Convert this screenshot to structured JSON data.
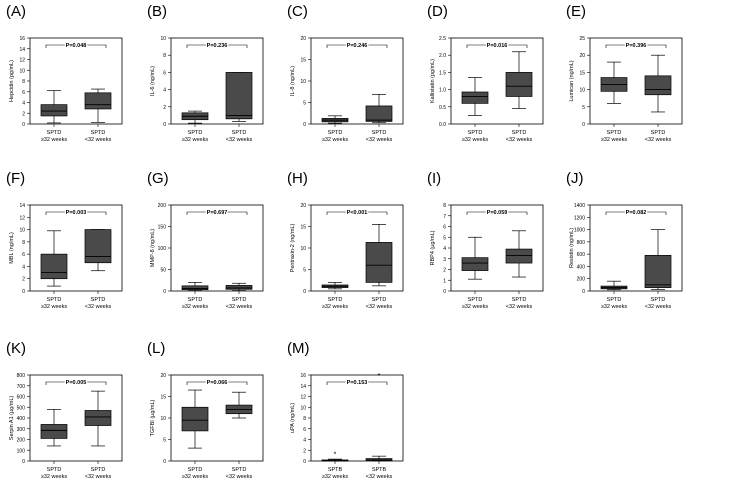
{
  "chart_data": [
    {
      "type": "box",
      "panel_label": "(A)",
      "ylabel": "Hepcidin (pg/mL)",
      "ylim": [
        0,
        16
      ],
      "yticks": [
        0,
        2,
        4,
        6,
        8,
        10,
        12,
        14,
        16
      ],
      "p_value": "P=0.048",
      "categories": [
        {
          "line1": "SPTD",
          "line2": "≥32 weeks",
          "box": {
            "min": 0.2,
            "q1": 1.5,
            "median": 2.4,
            "q3": 3.6,
            "max": 6.2
          }
        },
        {
          "line1": "SPTD",
          "line2": "<32 weeks",
          "box": {
            "min": 0.3,
            "q1": 2.8,
            "median": 3.6,
            "q3": 5.8,
            "max": 6.5
          }
        }
      ]
    },
    {
      "type": "box",
      "panel_label": "(B)",
      "ylabel": "IL-6 (ng/mL)",
      "ylim": [
        0,
        10
      ],
      "yticks": [
        0,
        2,
        4,
        6,
        8,
        10
      ],
      "p_value": "P=0.236",
      "categories": [
        {
          "line1": "SPTD",
          "line2": "≥32 weeks",
          "box": {
            "min": 0.1,
            "q1": 0.5,
            "median": 0.9,
            "q3": 1.3,
            "max": 1.5
          }
        },
        {
          "line1": "SPTD",
          "line2": "<32 weeks",
          "box": {
            "min": 0.3,
            "q1": 0.6,
            "median": 1.0,
            "q3": 6.0,
            "max": 6.0
          }
        }
      ]
    },
    {
      "type": "box",
      "panel_label": "(C)",
      "ylabel": "IL-8 (ng/mL)",
      "ylim": [
        0,
        20
      ],
      "yticks": [
        0,
        5,
        10,
        15,
        20
      ],
      "p_value": "P=0.246",
      "categories": [
        {
          "line1": "SPTD",
          "line2": "≥32 weeks",
          "box": {
            "min": 0.2,
            "q1": 0.5,
            "median": 0.9,
            "q3": 1.3,
            "max": 1.9
          }
        },
        {
          "line1": "SPTD",
          "line2": "<32 weeks",
          "box": {
            "min": 0.3,
            "q1": 0.6,
            "median": 0.9,
            "q3": 4.2,
            "max": 6.9
          }
        }
      ]
    },
    {
      "type": "box",
      "panel_label": "(D)",
      "ylabel": "Kallistatin (pg/mL)",
      "ylim": [
        0,
        2.5
      ],
      "yticks": [
        0.0,
        0.5,
        1.0,
        1.5,
        2.0,
        2.5
      ],
      "p_value": "P=0.016",
      "categories": [
        {
          "line1": "SPTD",
          "line2": "≥32 weeks",
          "box": {
            "min": 0.25,
            "q1": 0.6,
            "median": 0.8,
            "q3": 0.93,
            "max": 1.35
          }
        },
        {
          "line1": "SPTD",
          "line2": "<32 weeks",
          "box": {
            "min": 0.45,
            "q1": 0.8,
            "median": 1.1,
            "q3": 1.5,
            "max": 2.1
          }
        }
      ]
    },
    {
      "type": "box",
      "panel_label": "(E)",
      "ylabel": "Lumican (ng/mL)",
      "ylim": [
        0,
        25
      ],
      "yticks": [
        0,
        5,
        10,
        15,
        20,
        25
      ],
      "p_value": "P=0.396",
      "categories": [
        {
          "line1": "SPTD",
          "line2": "≥32 weeks",
          "box": {
            "min": 6,
            "q1": 9.5,
            "median": 11.5,
            "q3": 13.5,
            "max": 18
          }
        },
        {
          "line1": "SPTD",
          "line2": "<32 weeks",
          "box": {
            "min": 3.5,
            "q1": 8.5,
            "median": 10,
            "q3": 14,
            "max": 20
          }
        }
      ]
    },
    {
      "type": "box",
      "panel_label": "(F)",
      "ylabel": "MBL (ng/mL)",
      "ylim": [
        0,
        14
      ],
      "yticks": [
        0,
        2,
        4,
        6,
        8,
        10,
        12,
        14
      ],
      "p_value": "P=0.003",
      "categories": [
        {
          "line1": "SPTD",
          "line2": "≥32 weeks",
          "box": {
            "min": 0.8,
            "q1": 2,
            "median": 3,
            "q3": 6,
            "max": 9.8
          }
        },
        {
          "line1": "SPTD",
          "line2": "<32 weeks",
          "box": {
            "min": 3.3,
            "q1": 4.6,
            "median": 5.6,
            "q3": 10,
            "max": 10
          }
        }
      ]
    },
    {
      "type": "box",
      "panel_label": "(G)",
      "ylabel": "MMP-8 (ng/mL)",
      "ylim": [
        0,
        200
      ],
      "yticks": [
        0,
        50,
        100,
        150,
        200
      ],
      "p_value": "P=0.697",
      "categories": [
        {
          "line1": "SPTD",
          "line2": "≥32 weeks",
          "box": {
            "min": 1,
            "q1": 3,
            "median": 6,
            "q3": 12,
            "max": 20
          }
        },
        {
          "line1": "SPTD",
          "line2": "<32 weeks",
          "box": {
            "min": 1,
            "q1": 4,
            "median": 7,
            "q3": 13,
            "max": 18
          }
        }
      ]
    },
    {
      "type": "box",
      "panel_label": "(H)",
      "ylabel": "Pentraxin-2 (ng/mL)",
      "ylim": [
        0,
        20
      ],
      "yticks": [
        0,
        5,
        10,
        15,
        20
      ],
      "p_value": "P<0.001",
      "categories": [
        {
          "line1": "SPTD",
          "line2": "≥32 weeks",
          "box": {
            "min": 0.5,
            "q1": 0.8,
            "median": 1.1,
            "q3": 1.4,
            "max": 2.0
          }
        },
        {
          "line1": "SPTD",
          "line2": "<32 weeks",
          "box": {
            "min": 1.2,
            "q1": 2,
            "median": 6,
            "q3": 11.3,
            "max": 15.5
          }
        }
      ]
    },
    {
      "type": "box",
      "panel_label": "(I)",
      "ylabel": "RBP4 (µg/mL)",
      "ylim": [
        0,
        8
      ],
      "yticks": [
        0,
        1,
        2,
        3,
        4,
        5,
        6,
        7,
        8
      ],
      "p_value": "P=0.059",
      "categories": [
        {
          "line1": "SPTD",
          "line2": "≥32 weeks",
          "box": {
            "min": 1.1,
            "q1": 1.9,
            "median": 2.6,
            "q3": 3.1,
            "max": 5.0
          }
        },
        {
          "line1": "SPTD",
          "line2": "<32 weeks",
          "box": {
            "min": 1.3,
            "q1": 2.6,
            "median": 3.3,
            "q3": 3.9,
            "max": 5.6
          }
        }
      ]
    },
    {
      "type": "box",
      "panel_label": "(J)",
      "ylabel": "Resistin (ng/mL)",
      "ylim": [
        0,
        1400
      ],
      "yticks": [
        0,
        200,
        400,
        600,
        800,
        1000,
        1200,
        1400
      ],
      "p_value": "P=0.082",
      "categories": [
        {
          "line1": "SPTD",
          "line2": "≥32 weeks",
          "box": {
            "min": 20,
            "q1": 35,
            "median": 55,
            "q3": 80,
            "max": 160
          }
        },
        {
          "line1": "SPTD",
          "line2": "<32 weeks",
          "box": {
            "min": 25,
            "q1": 55,
            "median": 100,
            "q3": 580,
            "max": 1000
          }
        }
      ]
    },
    {
      "type": "box",
      "panel_label": "(K)",
      "ylabel": "Serpin A1 (µg/mL)",
      "ylim": [
        0,
        800
      ],
      "yticks": [
        0,
        100,
        200,
        300,
        400,
        500,
        600,
        700,
        800
      ],
      "p_value": "P=0.005",
      "categories": [
        {
          "line1": "SPTD",
          "line2": "≥32 weeks",
          "box": {
            "min": 140,
            "q1": 210,
            "median": 285,
            "q3": 340,
            "max": 480
          }
        },
        {
          "line1": "SPTD",
          "line2": "<32 weeks",
          "box": {
            "min": 140,
            "q1": 330,
            "median": 410,
            "q3": 470,
            "max": 650
          }
        }
      ]
    },
    {
      "type": "box",
      "panel_label": "(L)",
      "ylabel": "TGFBI (µg/mL)",
      "ylim": [
        0,
        20
      ],
      "yticks": [
        0,
        5,
        10,
        15,
        20
      ],
      "p_value": "P=0.066",
      "categories": [
        {
          "line1": "SPTD",
          "line2": "≥32 weeks",
          "box": {
            "min": 3,
            "q1": 7,
            "median": 9.5,
            "q3": 12.5,
            "max": 16.5
          }
        },
        {
          "line1": "SPTD",
          "line2": "<32 weeks",
          "box": {
            "min": 10,
            "q1": 11,
            "median": 12,
            "q3": 13,
            "max": 16
          }
        }
      ]
    },
    {
      "type": "box",
      "panel_label": "(M)",
      "ylabel": "uPA (ng/mL)",
      "ylim": [
        0,
        16
      ],
      "yticks": [
        0,
        2,
        4,
        6,
        8,
        10,
        12,
        14,
        16
      ],
      "p_value": "P=0.153",
      "categories": [
        {
          "line1": "SPTB",
          "line2": "≥32 weeks",
          "box": {
            "min": 0.02,
            "q1": 0.05,
            "median": 0.1,
            "q3": 0.2,
            "max": 0.35
          },
          "outliers": [
            1.2
          ]
        },
        {
          "line1": "SPTB",
          "line2": "<32 weeks",
          "box": {
            "min": 0.03,
            "q1": 0.1,
            "median": 0.2,
            "q3": 0.45,
            "max": 0.9
          },
          "outliers": [
            15.8
          ]
        }
      ]
    }
  ]
}
